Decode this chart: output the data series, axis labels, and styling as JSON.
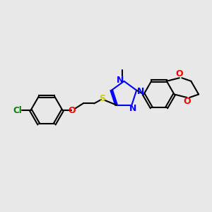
{
  "bg_color": "#e8e8e8",
  "black": "#000000",
  "blue": "#0000ff",
  "red": "#ff0000",
  "green": "#008000",
  "yellow": "#cccc00",
  "lw": 1.5,
  "xlim": [
    0,
    10
  ],
  "ylim": [
    0,
    10
  ]
}
